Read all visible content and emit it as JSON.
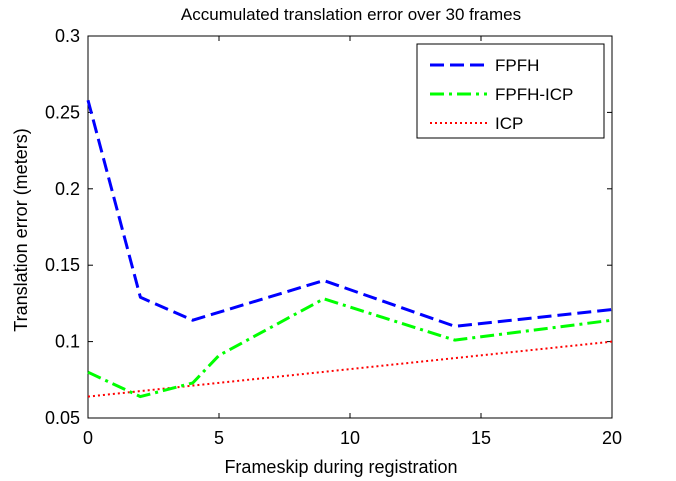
{
  "chart_data": {
    "type": "line",
    "title": "Accumulated translation error over 30 frames",
    "xlabel": "Frameskip during registration",
    "ylabel": "Translation error (meters)",
    "xlim": [
      0,
      20
    ],
    "ylim": [
      0.05,
      0.3
    ],
    "xticks": [
      0,
      5,
      10,
      15,
      20
    ],
    "yticks": [
      0.05,
      0.1,
      0.15,
      0.2,
      0.25,
      0.3
    ],
    "xtick_labels": [
      "0",
      "5",
      "10",
      "15",
      "20"
    ],
    "ytick_labels": [
      "0.05",
      "0.1",
      "0.15",
      "0.2",
      "0.25",
      "0.3"
    ],
    "grid": false,
    "legend_position": "top-right",
    "series": [
      {
        "name": "FPFH",
        "color": "#0000ff",
        "style": "dashed",
        "x": [
          0,
          2,
          4,
          9,
          14,
          20
        ],
        "y": [
          0.258,
          0.129,
          0.114,
          0.14,
          0.11,
          0.121
        ]
      },
      {
        "name": "FPFH-ICP",
        "color": "#00ff00",
        "style": "dash-dot",
        "x": [
          0,
          2,
          4,
          5,
          9,
          14,
          20
        ],
        "y": [
          0.08,
          0.064,
          0.073,
          0.091,
          0.128,
          0.101,
          0.114
        ]
      },
      {
        "name": "ICP",
        "color": "#ff0000",
        "style": "dotted",
        "x": [
          0,
          20
        ],
        "y": [
          0.064,
          0.1
        ]
      }
    ]
  }
}
